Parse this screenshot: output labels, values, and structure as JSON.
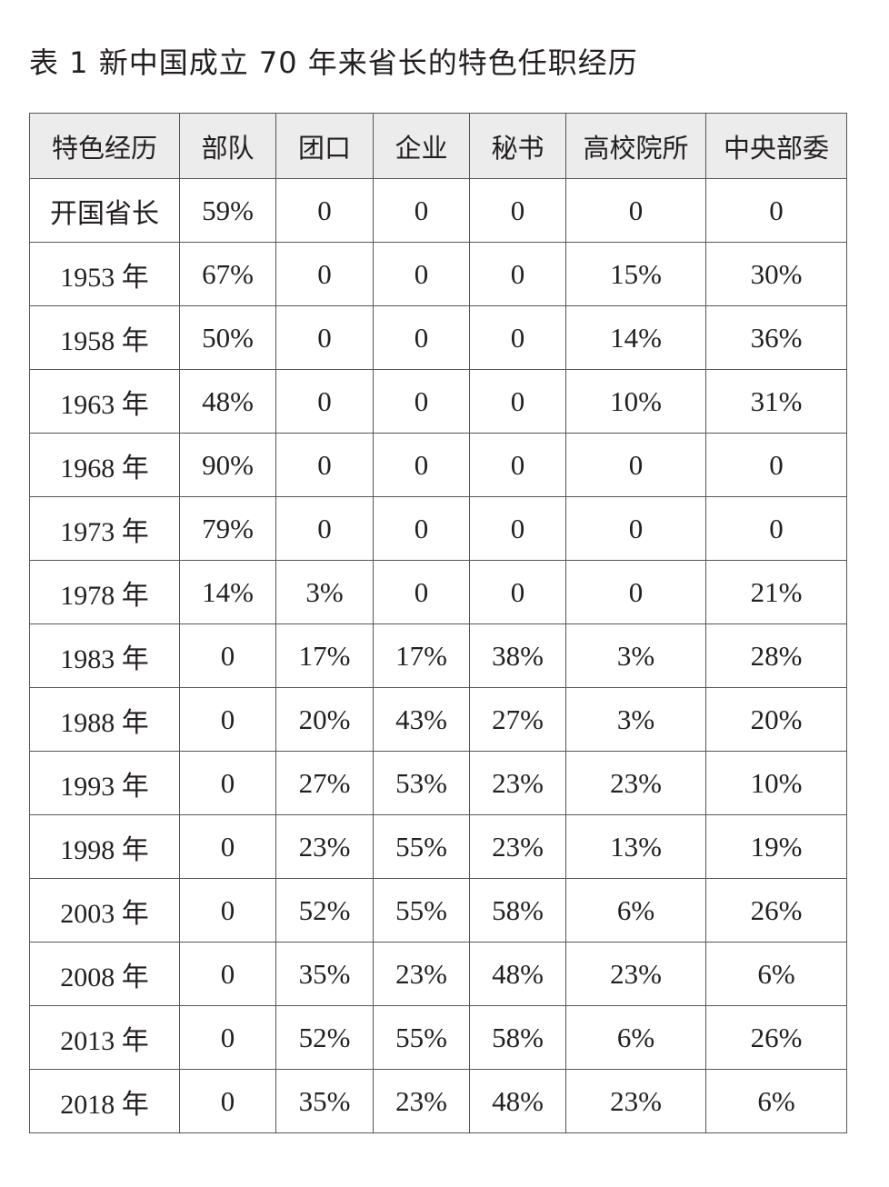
{
  "title": "表 1  新中国成立 70 年来省长的特色任职经历",
  "table": {
    "headers": [
      "特色经历",
      "部队",
      "团口",
      "企业",
      "秘书",
      "高校院所",
      "中央部委"
    ],
    "rows": [
      [
        "开国省长",
        "59%",
        "0",
        "0",
        "0",
        "0",
        "0"
      ],
      [
        "1953 年",
        "67%",
        "0",
        "0",
        "0",
        "15%",
        "30%"
      ],
      [
        "1958 年",
        "50%",
        "0",
        "0",
        "0",
        "14%",
        "36%"
      ],
      [
        "1963 年",
        "48%",
        "0",
        "0",
        "0",
        "10%",
        "31%"
      ],
      [
        "1968 年",
        "90%",
        "0",
        "0",
        "0",
        "0",
        "0"
      ],
      [
        "1973 年",
        "79%",
        "0",
        "0",
        "0",
        "0",
        "0"
      ],
      [
        "1978 年",
        "14%",
        "3%",
        "0",
        "0",
        "0",
        "21%"
      ],
      [
        "1983 年",
        "0",
        "17%",
        "17%",
        "38%",
        "3%",
        "28%"
      ],
      [
        "1988 年",
        "0",
        "20%",
        "43%",
        "27%",
        "3%",
        "20%"
      ],
      [
        "1993 年",
        "0",
        "27%",
        "53%",
        "23%",
        "23%",
        "10%"
      ],
      [
        "1998 年",
        "0",
        "23%",
        "55%",
        "23%",
        "13%",
        "19%"
      ],
      [
        "2003 年",
        "0",
        "52%",
        "55%",
        "58%",
        "6%",
        "26%"
      ],
      [
        "2008 年",
        "0",
        "35%",
        "23%",
        "48%",
        "23%",
        "6%"
      ],
      [
        "2013 年",
        "0",
        "52%",
        "55%",
        "58%",
        "6%",
        "26%"
      ],
      [
        "2018 年",
        "0",
        "35%",
        "23%",
        "48%",
        "23%",
        "6%"
      ]
    ]
  }
}
